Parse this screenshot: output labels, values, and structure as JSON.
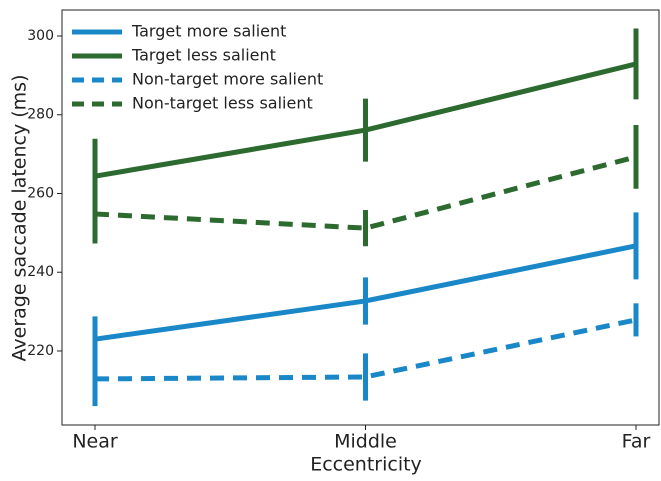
{
  "chart_data": {
    "type": "line",
    "xlabel": "Eccentricity",
    "ylabel": "Average saccade latency (ms)",
    "categories": [
      "Near",
      "Middle",
      "Far"
    ],
    "series": [
      {
        "name": "Target more salient",
        "color": "#1a87c8",
        "dash": "solid",
        "values": [
          223.0,
          232.7,
          246.7
        ],
        "errors": [
          5.8,
          6.0,
          8.5
        ]
      },
      {
        "name": "Target less salient",
        "color": "#2d6a2f",
        "dash": "solid",
        "values": [
          264.4,
          276.1,
          292.9
        ],
        "errors": [
          9.5,
          8.0,
          9.0
        ]
      },
      {
        "name": "Non-target more salient",
        "color": "#1a87c8",
        "dash": "dashed",
        "values": [
          212.9,
          213.4,
          227.9
        ],
        "errors": [
          6.9,
          6.0,
          4.2
        ]
      },
      {
        "name": "Non-target less salient",
        "color": "#2d6a2f",
        "dash": "dashed",
        "values": [
          254.8,
          251.2,
          269.3
        ],
        "errors": [
          7.5,
          4.6,
          8.1
        ]
      }
    ],
    "ylim": [
      201.2,
      306.6
    ],
    "yticks": [
      220,
      240,
      260,
      280,
      300
    ],
    "legend": "upper-left"
  }
}
